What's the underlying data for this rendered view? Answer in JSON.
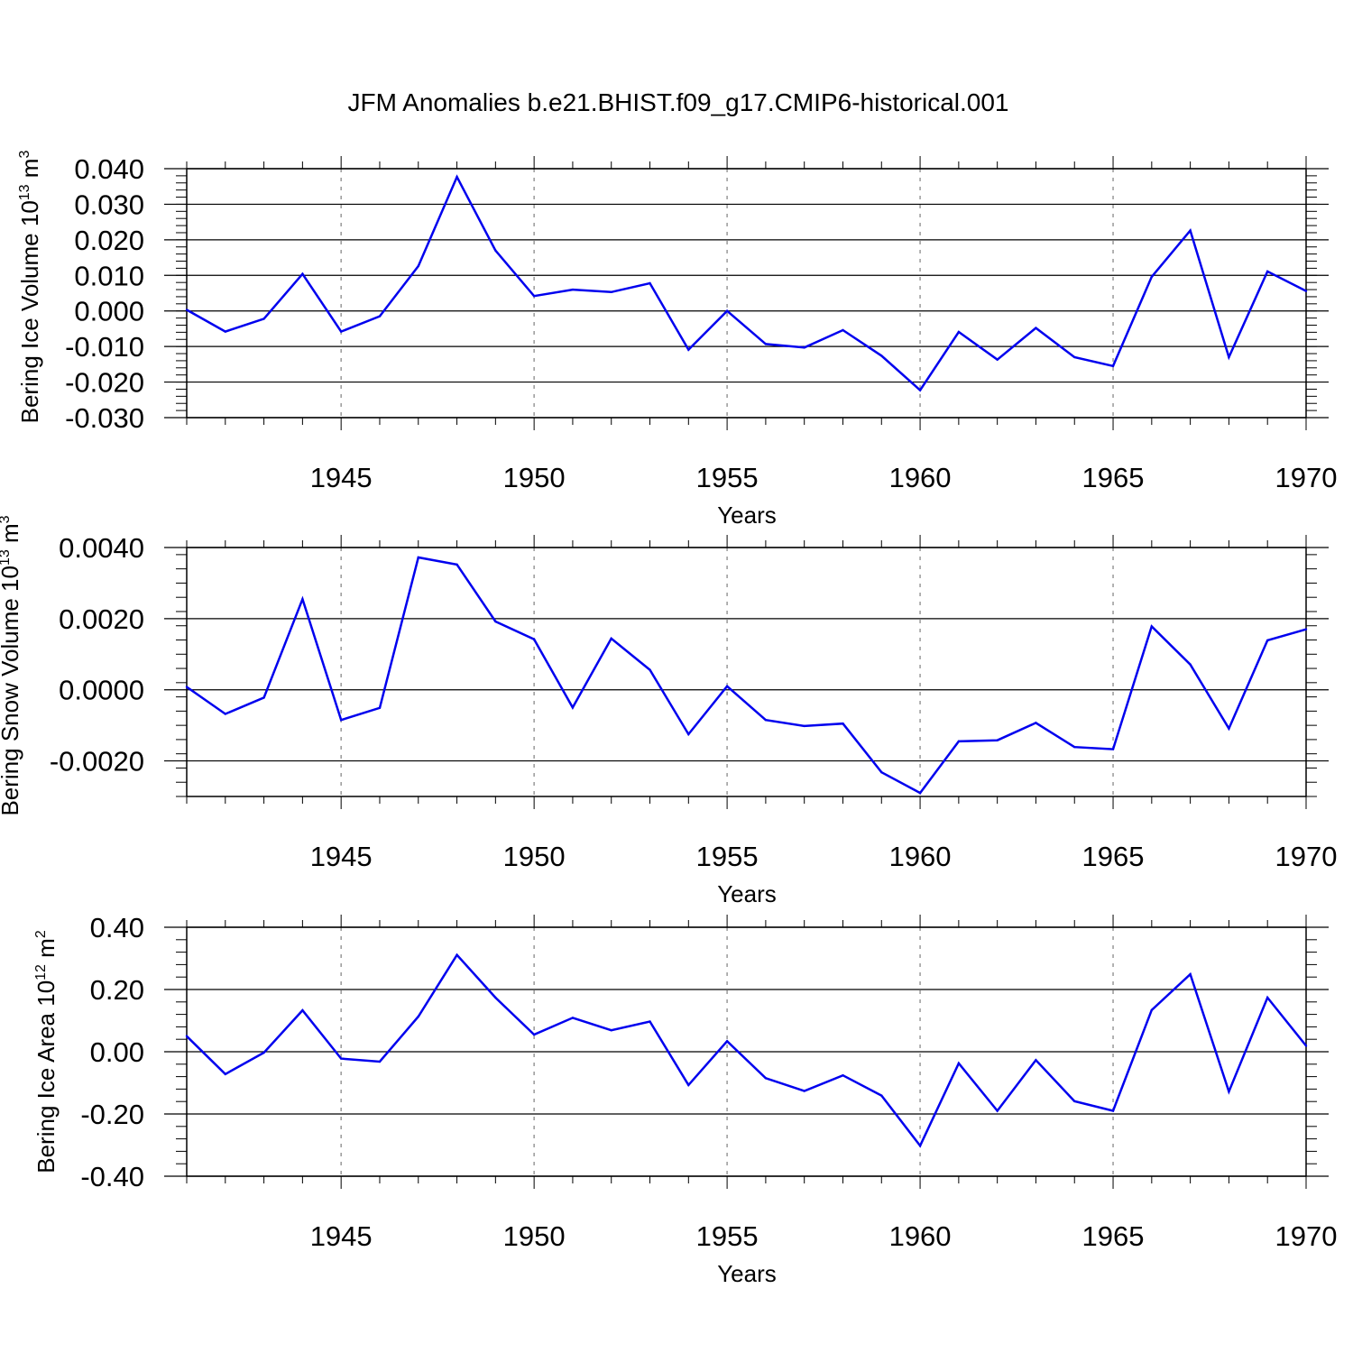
{
  "title": "JFM Anomalies b.e21.BHIST.f09_g17.CMIP6-historical.001",
  "colors": {
    "line": "#0000ee",
    "axis": "#000000",
    "grid": "#999999"
  },
  "chart_data": [
    {
      "type": "line",
      "ylabel_main": "Bering Ice Volume 10",
      "ylabel_exp": "13",
      "ylabel_unit": " m",
      "ylabel_unit_exp": "3",
      "xlabel": "Years",
      "xlim": [
        1941,
        1970
      ],
      "ylim": [
        -0.03,
        0.04
      ],
      "yticks": [
        0.04,
        0.03,
        0.02,
        0.01,
        0.0,
        -0.01,
        -0.02,
        -0.03
      ],
      "ytick_labels": [
        "0.040",
        "0.030",
        "0.020",
        "0.010",
        "0.000",
        "-0.010",
        "-0.020",
        "-0.030"
      ],
      "xticks": [
        1945,
        1950,
        1955,
        1960,
        1965,
        1970
      ],
      "xtick_labels": [
        "1945",
        "1950",
        "1955",
        "1960",
        "1965",
        "1970"
      ],
      "grid": "vertical dashed at major x ticks",
      "x": [
        1941,
        1942,
        1943,
        1944,
        1945,
        1946,
        1947,
        1948,
        1949,
        1950,
        1951,
        1952,
        1953,
        1954,
        1955,
        1956,
        1957,
        1958,
        1959,
        1960,
        1961,
        1962,
        1963,
        1964,
        1965,
        1966,
        1967,
        1968,
        1969,
        1970
      ],
      "values": [
        0.0003,
        -0.0058,
        -0.0022,
        0.0104,
        -0.0058,
        -0.0015,
        0.0126,
        0.0377,
        0.017,
        0.0042,
        0.006,
        0.0053,
        0.0078,
        -0.0109,
        0.0,
        -0.0093,
        -0.0103,
        -0.0054,
        -0.0126,
        -0.0223,
        -0.0059,
        -0.0137,
        -0.0048,
        -0.013,
        -0.0155,
        0.0096,
        0.0226,
        -0.013,
        0.0111,
        0.0056
      ]
    },
    {
      "type": "line",
      "ylabel_main": "Bering Snow Volume 10",
      "ylabel_exp": "13",
      "ylabel_unit": " m",
      "ylabel_unit_exp": "3",
      "xlabel": "Years",
      "xlim": [
        1941,
        1970
      ],
      "ylim": [
        -0.003,
        0.004
      ],
      "yticks": [
        0.004,
        0.002,
        0.0,
        -0.002
      ],
      "ytick_labels": [
        "0.0040",
        "0.0020",
        "0.0000",
        "-0.0020"
      ],
      "xticks": [
        1945,
        1950,
        1955,
        1960,
        1965,
        1970
      ],
      "xtick_labels": [
        "1945",
        "1950",
        "1955",
        "1960",
        "1965",
        "1970"
      ],
      "grid": "vertical dashed at major x ticks",
      "x": [
        1941,
        1942,
        1943,
        1944,
        1945,
        1946,
        1947,
        1948,
        1949,
        1950,
        1951,
        1952,
        1953,
        1954,
        1955,
        1956,
        1957,
        1958,
        1959,
        1960,
        1961,
        1962,
        1963,
        1964,
        1965,
        1966,
        1967,
        1968,
        1969,
        1970
      ],
      "values": [
        8e-05,
        -0.00068,
        -0.00022,
        0.00255,
        -0.00085,
        -0.00051,
        0.00372,
        0.00352,
        0.00192,
        0.00142,
        -0.0005,
        0.00144,
        0.00056,
        -0.00125,
        0.0001,
        -0.00085,
        -0.00102,
        -0.00095,
        -0.00232,
        -0.0029,
        -0.00145,
        -0.00142,
        -0.00093,
        -0.00161,
        -0.00167,
        0.00178,
        0.00071,
        -0.00109,
        0.00139,
        0.0017
      ]
    },
    {
      "type": "line",
      "ylabel_main": "Bering Ice Area 10",
      "ylabel_exp": "12",
      "ylabel_unit": " m",
      "ylabel_unit_exp": "2",
      "xlabel": "Years",
      "xlim": [
        1941,
        1970
      ],
      "ylim": [
        -0.4,
        0.4
      ],
      "yticks": [
        0.4,
        0.2,
        0.0,
        -0.2,
        -0.4
      ],
      "ytick_labels": [
        "0.40",
        "0.20",
        "0.00",
        "-0.20",
        "-0.40"
      ],
      "xticks": [
        1945,
        1950,
        1955,
        1960,
        1965,
        1970
      ],
      "xtick_labels": [
        "1945",
        "1950",
        "1955",
        "1960",
        "1965",
        "1970"
      ],
      "grid": "vertical dashed at major x ticks",
      "x": [
        1941,
        1942,
        1943,
        1944,
        1945,
        1946,
        1947,
        1948,
        1949,
        1950,
        1951,
        1952,
        1953,
        1954,
        1955,
        1956,
        1957,
        1958,
        1959,
        1960,
        1961,
        1962,
        1963,
        1964,
        1965,
        1966,
        1967,
        1968,
        1969,
        1970
      ],
      "values": [
        0.05,
        -0.072,
        -0.003,
        0.133,
        -0.022,
        -0.032,
        0.113,
        0.311,
        0.174,
        0.055,
        0.109,
        0.069,
        0.097,
        -0.107,
        0.034,
        -0.085,
        -0.126,
        -0.076,
        -0.141,
        -0.302,
        -0.037,
        -0.19,
        -0.027,
        -0.159,
        -0.19,
        0.134,
        0.249,
        -0.128,
        0.174,
        0.019
      ]
    }
  ]
}
